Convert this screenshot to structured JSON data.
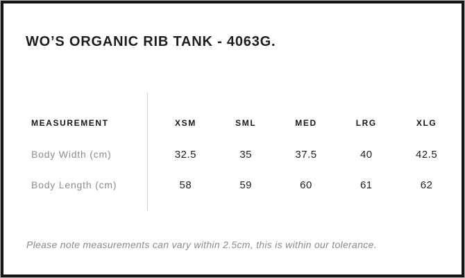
{
  "panel": {
    "title": "WO’S ORGANIC RIB TANK - 4063G."
  },
  "size_table": {
    "header_label": "MEASUREMENT",
    "size_headers": [
      "XSM",
      "SML",
      "MED",
      "LRG",
      "XLG"
    ],
    "rows": [
      {
        "label": "Body Width (cm)",
        "values": [
          "32.5",
          "35",
          "37.5",
          "40",
          "42.5"
        ]
      },
      {
        "label": "Body Length (cm)",
        "values": [
          "58",
          "59",
          "60",
          "61",
          "62"
        ]
      }
    ]
  },
  "note": "Please note measurements can vary within 2.5cm, this is within our tolerance.",
  "colors": {
    "frame_border": "#151515",
    "text": "#1c1c1c",
    "muted_text": "#8d8d8d",
    "divider": "#cfcfcf",
    "background": "#ffffff"
  }
}
